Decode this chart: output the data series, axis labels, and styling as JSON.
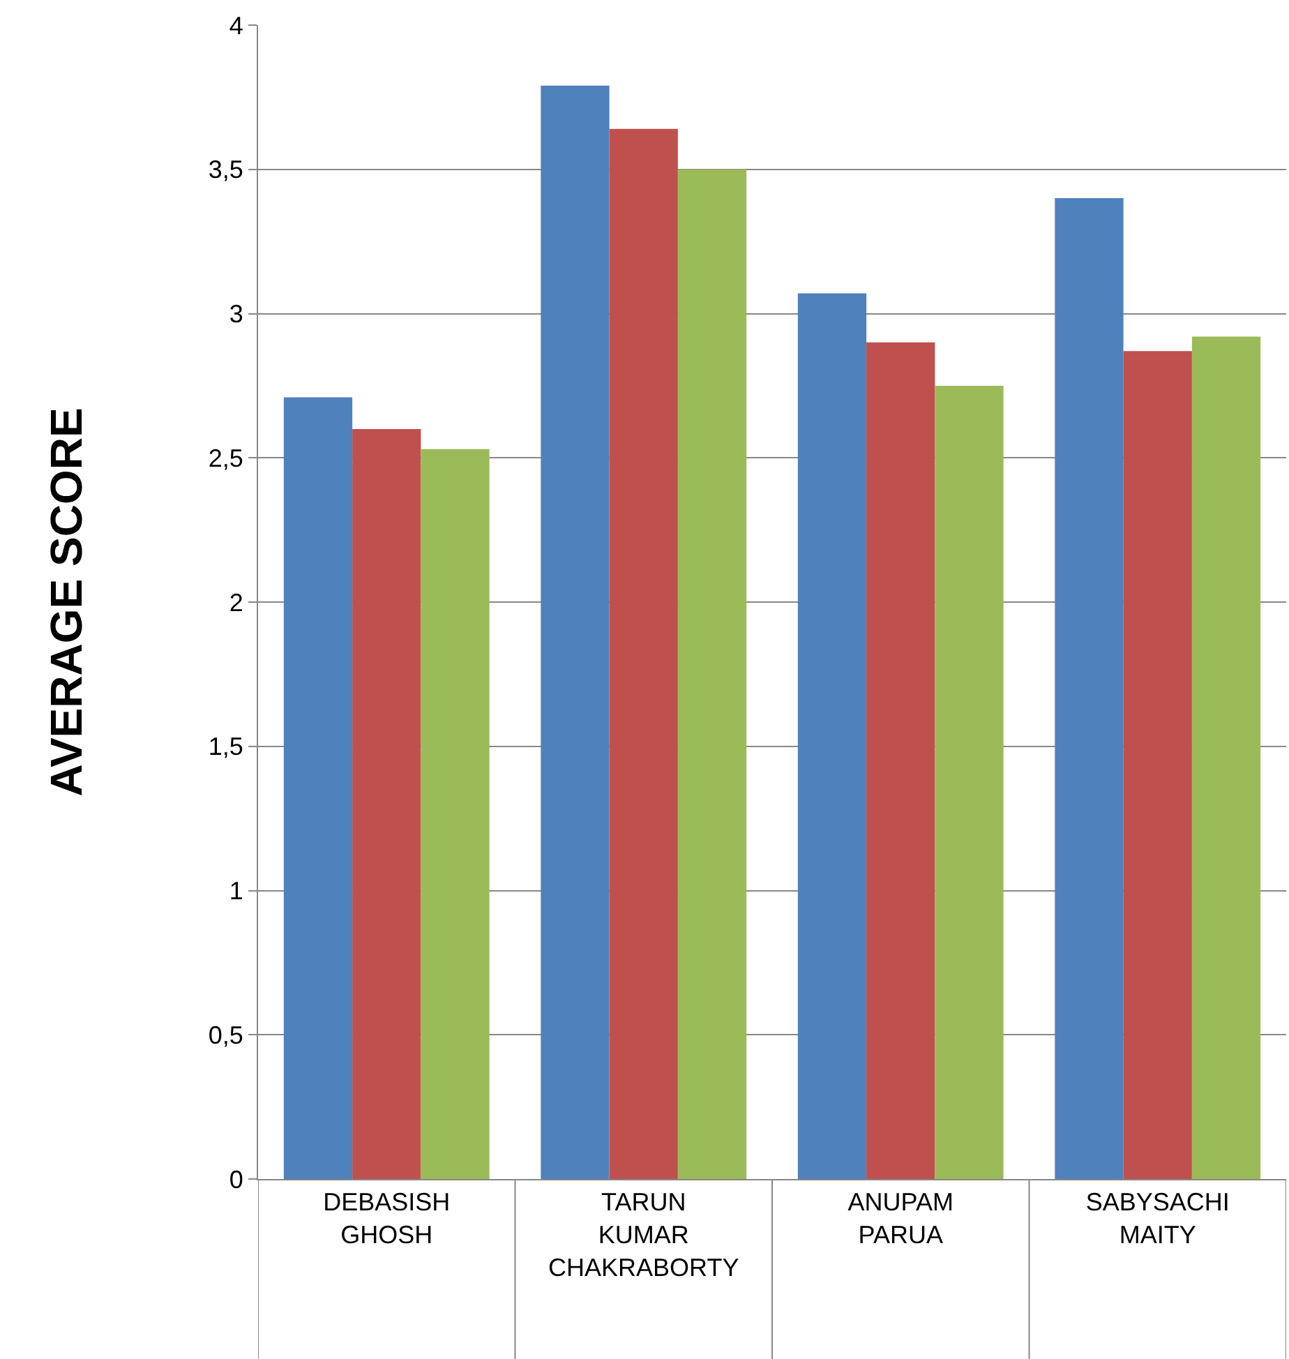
{
  "chart_data": {
    "type": "bar",
    "ylabel": "AVERAGE SCORE",
    "categories": [
      "DEBASISH GHOSH",
      "TARUN KUMAR CHAKRABORTY",
      "ANUPAM PARUA",
      "SABYSACHI MAITY"
    ],
    "series": [
      {
        "color": "#4f81bd",
        "values": [
          2.71,
          3.79,
          3.07,
          3.4
        ]
      },
      {
        "color": "#c0504d",
        "values": [
          2.6,
          3.64,
          2.9,
          2.87
        ]
      },
      {
        "color": "#9bbb59",
        "values": [
          2.53,
          3.5,
          2.75,
          2.92
        ]
      }
    ],
    "ylim": [
      0,
      4
    ],
    "yticks": [
      0,
      {
        "value": 0.5,
        "label": "0,5"
      },
      1,
      {
        "value": 1.5,
        "label": "1,5"
      },
      2,
      {
        "value": 2.5,
        "label": "2,5"
      },
      3,
      {
        "value": 3.5,
        "label": "3,5"
      },
      4
    ],
    "grid": "y"
  }
}
